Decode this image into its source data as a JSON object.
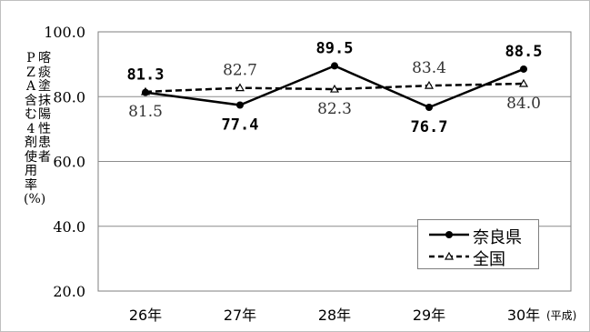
{
  "chart_data": {
    "type": "line",
    "title": "",
    "ylabel": "喀痰塗抹陽性患者 PZA含む4剤使用率(%)",
    "ylabel_lines": [
      "喀痰塗抹陽性患者",
      "PZA含む4剤使用率(%)"
    ],
    "xlabel": "(平成)",
    "categories": [
      "26年",
      "27年",
      "28年",
      "29年",
      "30年"
    ],
    "ylim": [
      20,
      100
    ],
    "yticks": [
      20,
      40,
      60,
      80,
      100
    ],
    "ytick_labels": [
      "20.0",
      "40.0",
      "60.0",
      "80.0",
      "100.0"
    ],
    "grid": true,
    "legend": "bottom-right",
    "series": [
      {
        "name": "奈良県",
        "values": [
          81.3,
          77.4,
          89.5,
          76.7,
          88.5
        ],
        "labels": [
          "81.3",
          "77.4",
          "89.5",
          "76.7",
          "88.5"
        ],
        "label_pos": [
          "above",
          "below",
          "above",
          "below",
          "above"
        ],
        "style": "solid",
        "marker": "filled-circle",
        "color": "#000000"
      },
      {
        "name": "全国",
        "values": [
          81.5,
          82.7,
          82.3,
          83.4,
          84.0
        ],
        "labels": [
          "81.5",
          "82.7",
          "82.3",
          "83.4",
          "84.0"
        ],
        "label_pos": [
          "below",
          "above",
          "below",
          "above",
          "below"
        ],
        "style": "dashed",
        "marker": "open-triangle",
        "color": "#000000"
      }
    ]
  }
}
